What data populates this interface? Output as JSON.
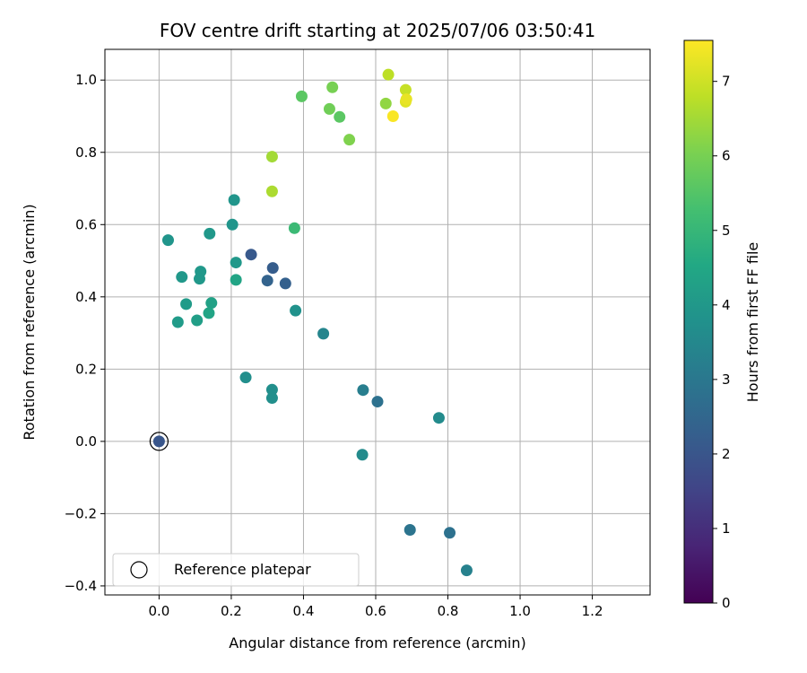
{
  "chart_data": {
    "type": "scatter",
    "title": "FOV centre drift starting at 2025/07/06 03:50:41",
    "xlabel": "Angular distance from reference (arcmin)",
    "ylabel": "Rotation from reference (arcmin)",
    "xlim": [
      -0.15,
      1.36
    ],
    "ylim": [
      -0.425,
      1.085
    ],
    "xticks": [
      0.0,
      0.2,
      0.4,
      0.6,
      0.8,
      1.0,
      1.2
    ],
    "xtick_labels": [
      "0.0",
      "0.2",
      "0.4",
      "0.6",
      "0.8",
      "1.0",
      "1.2"
    ],
    "yticks": [
      -0.4,
      -0.2,
      0.0,
      0.2,
      0.4,
      0.6,
      0.8,
      1.0
    ],
    "ytick_labels": [
      "−0.4",
      "−0.2",
      "0.0",
      "0.2",
      "0.4",
      "0.6",
      "0.8",
      "1.0"
    ],
    "grid": true,
    "legend": {
      "location": "lower-left",
      "entries": [
        "Reference platepar"
      ]
    },
    "reference_point": {
      "x": 0.0,
      "y": 0.0
    },
    "colorbar": {
      "label": "Hours from first FF file",
      "range": [
        0,
        7.55
      ],
      "ticks": [
        0,
        1,
        2,
        3,
        4,
        5,
        6,
        7
      ],
      "tick_labels": [
        "0",
        "1",
        "2",
        "3",
        "4",
        "5",
        "6",
        "7"
      ],
      "colormap": "viridis"
    },
    "points": [
      {
        "x": 0.0,
        "y": 0.0,
        "hours": 2.0
      },
      {
        "x": 0.255,
        "y": 0.517,
        "hours": 2.1
      },
      {
        "x": 0.315,
        "y": 0.48,
        "hours": 2.2
      },
      {
        "x": 0.3,
        "y": 0.445,
        "hours": 2.4
      },
      {
        "x": 0.35,
        "y": 0.437,
        "hours": 2.3
      },
      {
        "x": 0.605,
        "y": 0.11,
        "hours": 2.8
      },
      {
        "x": 0.695,
        "y": -0.245,
        "hours": 2.9
      },
      {
        "x": 0.805,
        "y": -0.253,
        "hours": 2.8
      },
      {
        "x": 0.565,
        "y": 0.142,
        "hours": 3.2
      },
      {
        "x": 0.455,
        "y": 0.298,
        "hours": 3.4
      },
      {
        "x": 0.852,
        "y": -0.357,
        "hours": 3.3
      },
      {
        "x": 0.775,
        "y": 0.065,
        "hours": 3.6
      },
      {
        "x": 0.563,
        "y": -0.037,
        "hours": 3.6
      },
      {
        "x": 0.313,
        "y": 0.143,
        "hours": 3.7
      },
      {
        "x": 0.313,
        "y": 0.12,
        "hours": 3.7
      },
      {
        "x": 0.378,
        "y": 0.362,
        "hours": 3.8
      },
      {
        "x": 0.24,
        "y": 0.177,
        "hours": 3.7
      },
      {
        "x": 0.203,
        "y": 0.6,
        "hours": 3.9
      },
      {
        "x": 0.208,
        "y": 0.668,
        "hours": 3.9
      },
      {
        "x": 0.025,
        "y": 0.557,
        "hours": 3.9
      },
      {
        "x": 0.14,
        "y": 0.575,
        "hours": 4.0
      },
      {
        "x": 0.213,
        "y": 0.495,
        "hours": 4.0
      },
      {
        "x": 0.115,
        "y": 0.47,
        "hours": 4.0
      },
      {
        "x": 0.112,
        "y": 0.45,
        "hours": 4.0
      },
      {
        "x": 0.063,
        "y": 0.455,
        "hours": 4.0
      },
      {
        "x": 0.213,
        "y": 0.447,
        "hours": 4.4
      },
      {
        "x": 0.075,
        "y": 0.38,
        "hours": 4.1
      },
      {
        "x": 0.145,
        "y": 0.383,
        "hours": 4.3
      },
      {
        "x": 0.138,
        "y": 0.355,
        "hours": 4.4
      },
      {
        "x": 0.105,
        "y": 0.335,
        "hours": 4.2
      },
      {
        "x": 0.052,
        "y": 0.33,
        "hours": 4.1
      },
      {
        "x": 0.375,
        "y": 0.59,
        "hours": 5.1
      },
      {
        "x": 0.395,
        "y": 0.955,
        "hours": 5.6
      },
      {
        "x": 0.5,
        "y": 0.898,
        "hours": 5.6
      },
      {
        "x": 0.472,
        "y": 0.92,
        "hours": 5.9
      },
      {
        "x": 0.48,
        "y": 0.98,
        "hours": 6.0
      },
      {
        "x": 0.527,
        "y": 0.835,
        "hours": 6.1
      },
      {
        "x": 0.313,
        "y": 0.788,
        "hours": 6.5
      },
      {
        "x": 0.313,
        "y": 0.692,
        "hours": 6.6
      },
      {
        "x": 0.635,
        "y": 1.015,
        "hours": 6.8
      },
      {
        "x": 0.628,
        "y": 0.935,
        "hours": 6.3
      },
      {
        "x": 0.683,
        "y": 0.973,
        "hours": 6.9
      },
      {
        "x": 0.683,
        "y": 0.94,
        "hours": 7.2
      },
      {
        "x": 0.685,
        "y": 0.947,
        "hours": 7.3
      },
      {
        "x": 0.648,
        "y": 0.9,
        "hours": 7.5
      }
    ]
  }
}
